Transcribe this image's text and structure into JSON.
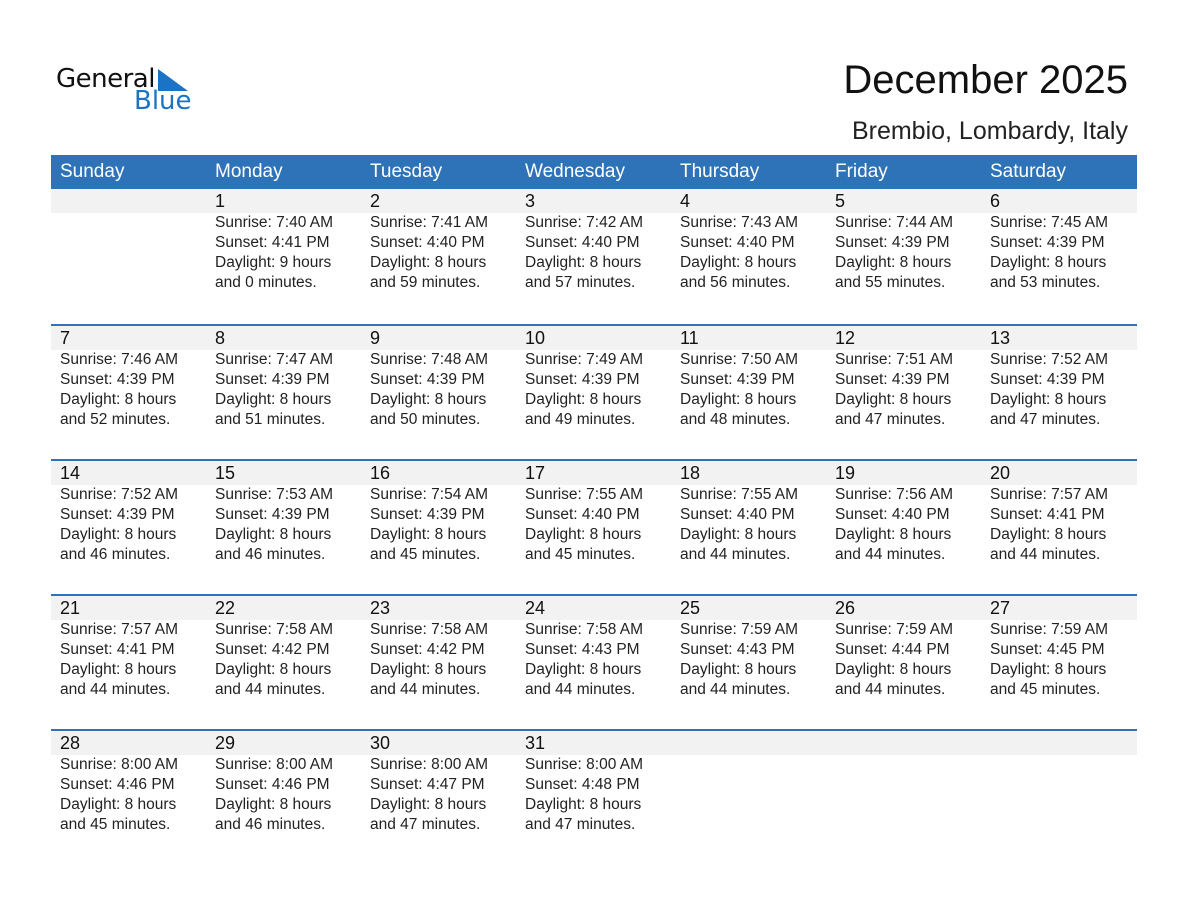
{
  "logo": {
    "text_general": "General",
    "text_blue": "Blue",
    "color": "#1a73c4"
  },
  "title": "December 2025",
  "subtitle": "Brembio, Lombardy, Italy",
  "colors": {
    "header": "#2e72b8",
    "band": "#f2f2f2"
  },
  "weekdays": [
    "Sunday",
    "Monday",
    "Tuesday",
    "Wednesday",
    "Thursday",
    "Friday",
    "Saturday"
  ],
  "weeks": [
    [
      null,
      {
        "day": "1",
        "sunrise": "Sunrise: 7:40 AM",
        "sunset": "Sunset: 4:41 PM",
        "daylight": "Daylight: 9 hours",
        "minutes": "and 0 minutes."
      },
      {
        "day": "2",
        "sunrise": "Sunrise: 7:41 AM",
        "sunset": "Sunset: 4:40 PM",
        "daylight": "Daylight: 8 hours",
        "minutes": "and 59 minutes."
      },
      {
        "day": "3",
        "sunrise": "Sunrise: 7:42 AM",
        "sunset": "Sunset: 4:40 PM",
        "daylight": "Daylight: 8 hours",
        "minutes": "and 57 minutes."
      },
      {
        "day": "4",
        "sunrise": "Sunrise: 7:43 AM",
        "sunset": "Sunset: 4:40 PM",
        "daylight": "Daylight: 8 hours",
        "minutes": "and 56 minutes."
      },
      {
        "day": "5",
        "sunrise": "Sunrise: 7:44 AM",
        "sunset": "Sunset: 4:39 PM",
        "daylight": "Daylight: 8 hours",
        "minutes": "and 55 minutes."
      },
      {
        "day": "6",
        "sunrise": "Sunrise: 7:45 AM",
        "sunset": "Sunset: 4:39 PM",
        "daylight": "Daylight: 8 hours",
        "minutes": "and 53 minutes."
      }
    ],
    [
      {
        "day": "7",
        "sunrise": "Sunrise: 7:46 AM",
        "sunset": "Sunset: 4:39 PM",
        "daylight": "Daylight: 8 hours",
        "minutes": "and 52 minutes."
      },
      {
        "day": "8",
        "sunrise": "Sunrise: 7:47 AM",
        "sunset": "Sunset: 4:39 PM",
        "daylight": "Daylight: 8 hours",
        "minutes": "and 51 minutes."
      },
      {
        "day": "9",
        "sunrise": "Sunrise: 7:48 AM",
        "sunset": "Sunset: 4:39 PM",
        "daylight": "Daylight: 8 hours",
        "minutes": "and 50 minutes."
      },
      {
        "day": "10",
        "sunrise": "Sunrise: 7:49 AM",
        "sunset": "Sunset: 4:39 PM",
        "daylight": "Daylight: 8 hours",
        "minutes": "and 49 minutes."
      },
      {
        "day": "11",
        "sunrise": "Sunrise: 7:50 AM",
        "sunset": "Sunset: 4:39 PM",
        "daylight": "Daylight: 8 hours",
        "minutes": "and 48 minutes."
      },
      {
        "day": "12",
        "sunrise": "Sunrise: 7:51 AM",
        "sunset": "Sunset: 4:39 PM",
        "daylight": "Daylight: 8 hours",
        "minutes": "and 47 minutes."
      },
      {
        "day": "13",
        "sunrise": "Sunrise: 7:52 AM",
        "sunset": "Sunset: 4:39 PM",
        "daylight": "Daylight: 8 hours",
        "minutes": "and 47 minutes."
      }
    ],
    [
      {
        "day": "14",
        "sunrise": "Sunrise: 7:52 AM",
        "sunset": "Sunset: 4:39 PM",
        "daylight": "Daylight: 8 hours",
        "minutes": "and 46 minutes."
      },
      {
        "day": "15",
        "sunrise": "Sunrise: 7:53 AM",
        "sunset": "Sunset: 4:39 PM",
        "daylight": "Daylight: 8 hours",
        "minutes": "and 46 minutes."
      },
      {
        "day": "16",
        "sunrise": "Sunrise: 7:54 AM",
        "sunset": "Sunset: 4:39 PM",
        "daylight": "Daylight: 8 hours",
        "minutes": "and 45 minutes."
      },
      {
        "day": "17",
        "sunrise": "Sunrise: 7:55 AM",
        "sunset": "Sunset: 4:40 PM",
        "daylight": "Daylight: 8 hours",
        "minutes": "and 45 minutes."
      },
      {
        "day": "18",
        "sunrise": "Sunrise: 7:55 AM",
        "sunset": "Sunset: 4:40 PM",
        "daylight": "Daylight: 8 hours",
        "minutes": "and 44 minutes."
      },
      {
        "day": "19",
        "sunrise": "Sunrise: 7:56 AM",
        "sunset": "Sunset: 4:40 PM",
        "daylight": "Daylight: 8 hours",
        "minutes": "and 44 minutes."
      },
      {
        "day": "20",
        "sunrise": "Sunrise: 7:57 AM",
        "sunset": "Sunset: 4:41 PM",
        "daylight": "Daylight: 8 hours",
        "minutes": "and 44 minutes."
      }
    ],
    [
      {
        "day": "21",
        "sunrise": "Sunrise: 7:57 AM",
        "sunset": "Sunset: 4:41 PM",
        "daylight": "Daylight: 8 hours",
        "minutes": "and 44 minutes."
      },
      {
        "day": "22",
        "sunrise": "Sunrise: 7:58 AM",
        "sunset": "Sunset: 4:42 PM",
        "daylight": "Daylight: 8 hours",
        "minutes": "and 44 minutes."
      },
      {
        "day": "23",
        "sunrise": "Sunrise: 7:58 AM",
        "sunset": "Sunset: 4:42 PM",
        "daylight": "Daylight: 8 hours",
        "minutes": "and 44 minutes."
      },
      {
        "day": "24",
        "sunrise": "Sunrise: 7:58 AM",
        "sunset": "Sunset: 4:43 PM",
        "daylight": "Daylight: 8 hours",
        "minutes": "and 44 minutes."
      },
      {
        "day": "25",
        "sunrise": "Sunrise: 7:59 AM",
        "sunset": "Sunset: 4:43 PM",
        "daylight": "Daylight: 8 hours",
        "minutes": "and 44 minutes."
      },
      {
        "day": "26",
        "sunrise": "Sunrise: 7:59 AM",
        "sunset": "Sunset: 4:44 PM",
        "daylight": "Daylight: 8 hours",
        "minutes": "and 44 minutes."
      },
      {
        "day": "27",
        "sunrise": "Sunrise: 7:59 AM",
        "sunset": "Sunset: 4:45 PM",
        "daylight": "Daylight: 8 hours",
        "minutes": "and 45 minutes."
      }
    ],
    [
      {
        "day": "28",
        "sunrise": "Sunrise: 8:00 AM",
        "sunset": "Sunset: 4:46 PM",
        "daylight": "Daylight: 8 hours",
        "minutes": "and 45 minutes."
      },
      {
        "day": "29",
        "sunrise": "Sunrise: 8:00 AM",
        "sunset": "Sunset: 4:46 PM",
        "daylight": "Daylight: 8 hours",
        "minutes": "and 46 minutes."
      },
      {
        "day": "30",
        "sunrise": "Sunrise: 8:00 AM",
        "sunset": "Sunset: 4:47 PM",
        "daylight": "Daylight: 8 hours",
        "minutes": "and 47 minutes."
      },
      {
        "day": "31",
        "sunrise": "Sunrise: 8:00 AM",
        "sunset": "Sunset: 4:48 PM",
        "daylight": "Daylight: 8 hours",
        "minutes": "and 47 minutes."
      },
      null,
      null,
      null
    ]
  ]
}
